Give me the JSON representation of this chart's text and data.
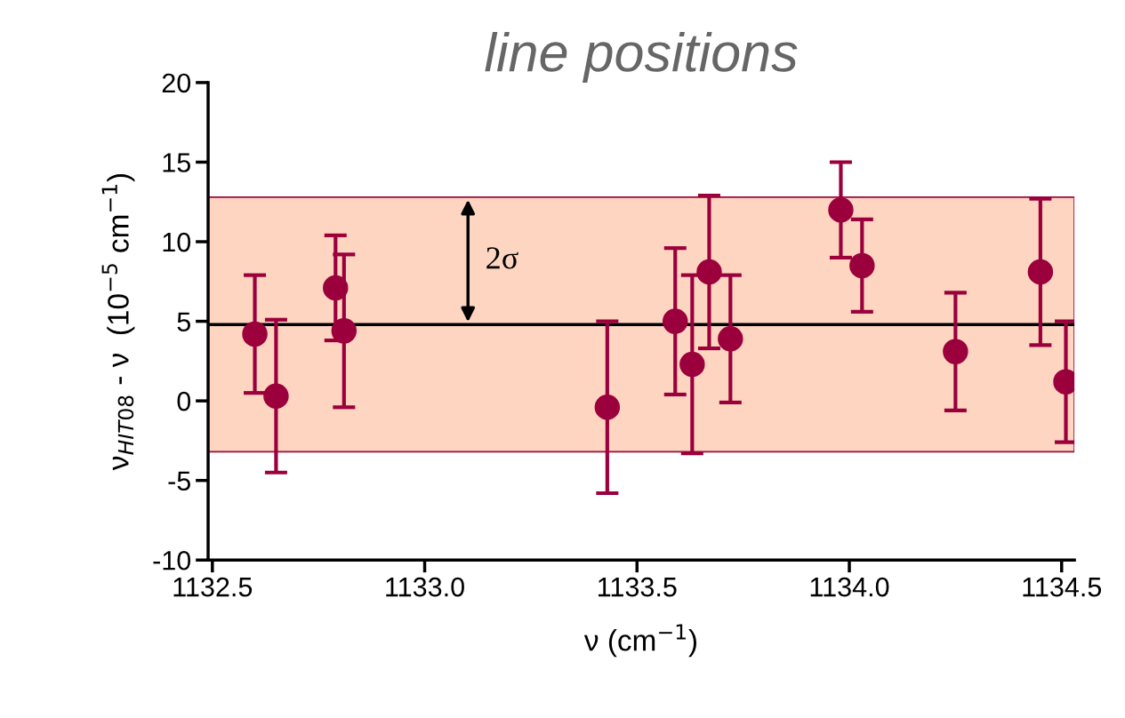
{
  "chart_data": {
    "type": "scatter",
    "title": "line positions",
    "xlabel": "ν (cm$^{−1}$)",
    "ylabel": "ν$_{HIT08}$ - ν  (10$^{−5}$ cm$^{−1}$)",
    "x": [
      1132.6,
      1132.65,
      1132.79,
      1132.81,
      1133.43,
      1133.59,
      1133.63,
      1133.67,
      1133.72,
      1133.98,
      1134.03,
      1134.25,
      1134.45,
      1134.51
    ],
    "series": [
      {
        "color": "#9b003d",
        "values": [
          4.2,
          0.3,
          7.1,
          4.4,
          -0.4,
          5.0,
          2.3,
          8.1,
          3.9,
          12.0,
          8.5,
          3.1,
          8.1,
          1.2
        ],
        "errors": [
          [
            0.5,
            7.9
          ],
          [
            -4.5,
            5.1
          ],
          [
            3.8,
            10.4
          ],
          [
            -0.4,
            9.2
          ],
          [
            -5.8,
            5.0
          ],
          [
            0.4,
            9.6
          ],
          [
            -3.3,
            7.9
          ],
          [
            3.3,
            12.9
          ],
          [
            -0.1,
            7.9
          ],
          [
            9.0,
            15.0
          ],
          [
            5.6,
            11.4
          ],
          [
            -0.6,
            6.8
          ],
          [
            3.5,
            12.7
          ],
          [
            -2.6,
            5.0
          ]
        ]
      }
    ],
    "marker": "circle",
    "xlim": [
      1132.49,
      1134.53
    ],
    "ylim": [
      -10,
      20
    ],
    "xticks": [
      {
        "value": 1132.5,
        "label": "1132.5"
      },
      {
        "value": 1133.0,
        "label": "1133.0"
      },
      {
        "value": 1133.5,
        "label": "1133.5"
      },
      {
        "value": 1134.0,
        "label": "1134.0"
      },
      {
        "value": 1134.5,
        "label": "1134.5"
      }
    ],
    "yticks": [
      -10,
      -5,
      0,
      5,
      10,
      15,
      20
    ],
    "ref_lines": [
      {
        "axis": "y",
        "value": 4.8,
        "color": "#000000"
      }
    ],
    "bands": [
      {
        "axis": "y",
        "from": -3.2,
        "to": 12.8,
        "color": "#fdd5c0"
      }
    ],
    "annotations": [
      "2σ"
    ],
    "grid": false,
    "legend": false
  }
}
